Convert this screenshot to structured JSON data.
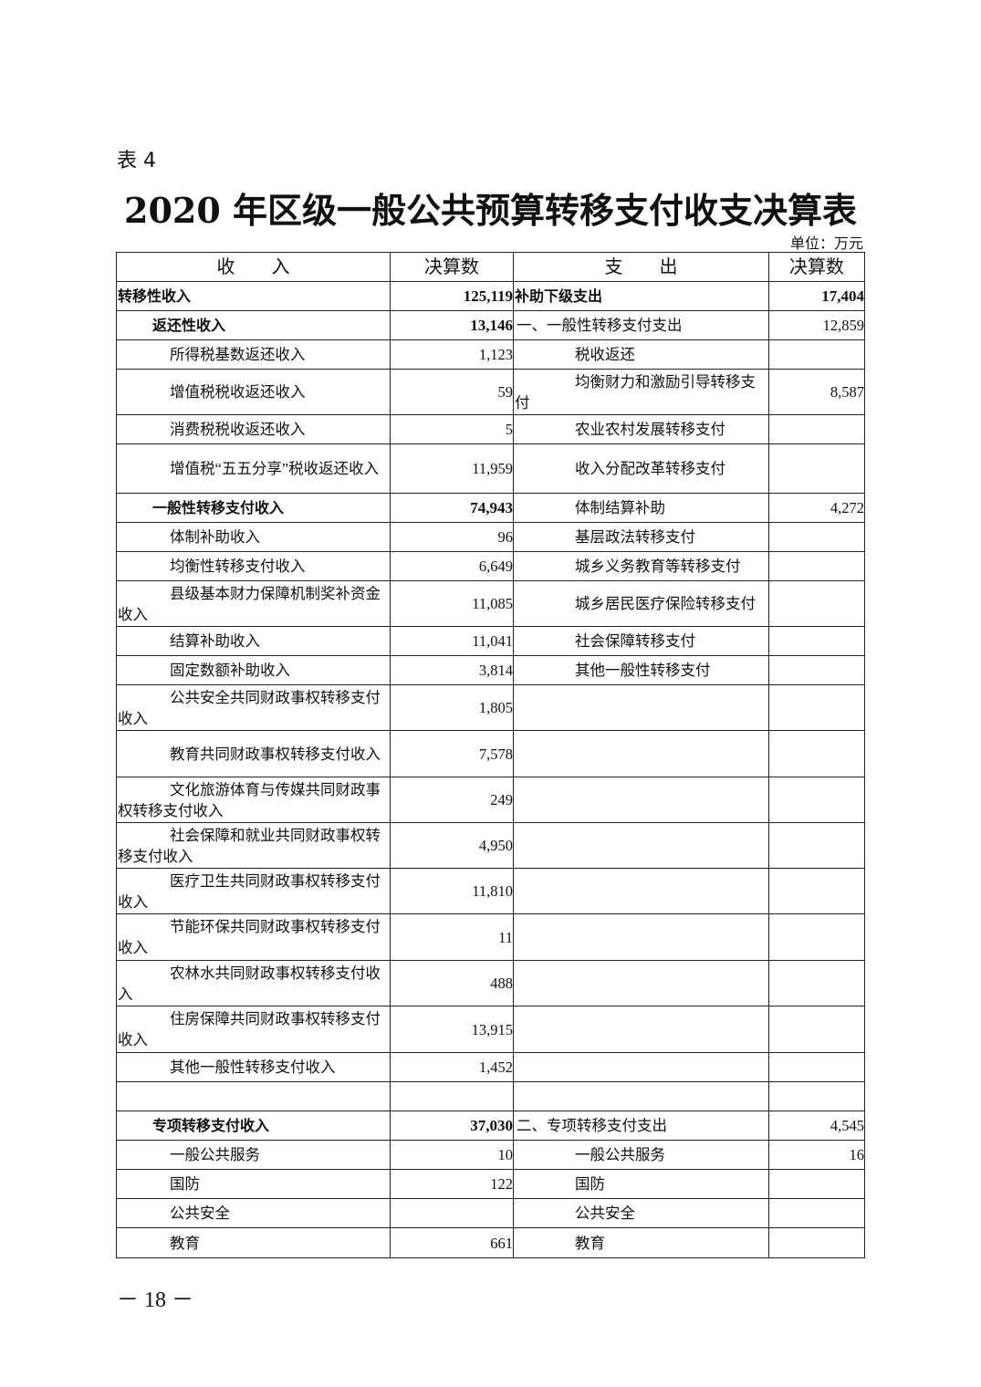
{
  "doc": {
    "label": "表 4",
    "title": "2020 年区级一般公共预算转移支付收支决算表",
    "unit": "单位：万元",
    "page_number": "－ 18 －"
  },
  "table": {
    "headers": [
      "收　　入",
      "决算数",
      "支　　出",
      "决算数"
    ],
    "rows": [
      {
        "in_label": "转移性收入",
        "in_level": 0,
        "in_value": "125,119",
        "out_label": "补助下级支出",
        "out_level": 0,
        "out_value": "17,404",
        "bold": true
      },
      {
        "in_label": "返还性收入",
        "in_level": 1,
        "in_value": "13,146",
        "out_label": "一、一般性转移支付支出",
        "out_level": 1,
        "out_value": "12,859",
        "bold_in": true
      },
      {
        "in_label": "所得税基数返还收入",
        "in_level": 2,
        "in_value": "1,123",
        "out_label": "税收返还",
        "out_level": 2,
        "out_value": ""
      },
      {
        "in_label": "增值税税收返还收入",
        "in_level": 2,
        "in_value": "59",
        "out_label": "均衡财力和激励引导转移支付",
        "out_level": 2,
        "out_value": "8,587"
      },
      {
        "in_label": "消费税税收返还收入",
        "in_level": 2,
        "in_value": "5",
        "out_label": "农业农村发展转移支付",
        "out_level": 2,
        "out_value": ""
      },
      {
        "in_label": "增值税“五五分享”税收返还收入",
        "in_level": 2,
        "in_value": "11,959",
        "out_label": "收入分配改革转移支付",
        "out_level": 2,
        "out_value": ""
      },
      {
        "in_label": "一般性转移支付收入",
        "in_level": 1,
        "in_value": "74,943",
        "out_label": "体制结算补助",
        "out_level": 2,
        "out_value": "4,272",
        "bold_in": true
      },
      {
        "in_label": "体制补助收入",
        "in_level": 2,
        "in_value": "96",
        "out_label": "基层政法转移支付",
        "out_level": 2,
        "out_value": ""
      },
      {
        "in_label": "均衡性转移支付收入",
        "in_level": 2,
        "in_value": "6,649",
        "out_label": "城乡义务教育等转移支付",
        "out_level": 2,
        "out_value": ""
      },
      {
        "in_label": "县级基本财力保障机制奖补资金收入",
        "in_level": 2,
        "in_value": "11,085",
        "out_label": "城乡居民医疗保险转移支付",
        "out_level": 2,
        "out_value": ""
      },
      {
        "in_label": "结算补助收入",
        "in_level": 2,
        "in_value": "11,041",
        "out_label": "社会保障转移支付",
        "out_level": 2,
        "out_value": ""
      },
      {
        "in_label": "固定数额补助收入",
        "in_level": 2,
        "in_value": "3,814",
        "out_label": "其他一般性转移支付",
        "out_level": 2,
        "out_value": ""
      },
      {
        "in_label": "公共安全共同财政事权转移支付收入",
        "in_level": 2,
        "in_value": "1,805",
        "out_label": "",
        "out_level": 2,
        "out_value": ""
      },
      {
        "in_label": "教育共同财政事权转移支付收入",
        "in_level": 2,
        "in_value": "7,578",
        "out_label": "",
        "out_level": 2,
        "out_value": ""
      },
      {
        "in_label": "文化旅游体育与传媒共同财政事权转移支付收入",
        "in_level": 2,
        "in_value": "249",
        "out_label": "",
        "out_level": 2,
        "out_value": ""
      },
      {
        "in_label": "社会保障和就业共同财政事权转移支付收入",
        "in_level": 2,
        "in_value": "4,950",
        "out_label": "",
        "out_level": 2,
        "out_value": ""
      },
      {
        "in_label": "医疗卫生共同财政事权转移支付收入",
        "in_level": 2,
        "in_value": "11,810",
        "out_label": "",
        "out_level": 2,
        "out_value": ""
      },
      {
        "in_label": "节能环保共同财政事权转移支付收入",
        "in_level": 2,
        "in_value": "11",
        "out_label": "",
        "out_level": 2,
        "out_value": ""
      },
      {
        "in_label": "农林水共同财政事权转移支付收入",
        "in_level": 2,
        "in_value": "488",
        "out_label": "",
        "out_level": 2,
        "out_value": ""
      },
      {
        "in_label": "住房保障共同财政事权转移支付收入",
        "in_level": 2,
        "in_value": "13,915",
        "out_label": "",
        "out_level": 2,
        "out_value": ""
      },
      {
        "in_label": "其他一般性转移支付收入",
        "in_level": 2,
        "in_value": "1,452",
        "out_label": "",
        "out_level": 2,
        "out_value": ""
      },
      {
        "in_label": "",
        "in_level": 2,
        "in_value": "",
        "out_label": "",
        "out_level": 2,
        "out_value": ""
      },
      {
        "in_label": "专项转移支付收入",
        "in_level": 1,
        "in_value": "37,030",
        "out_label": "二、专项转移支付支出",
        "out_level": 1,
        "out_value": "4,545",
        "bold_in": true
      },
      {
        "in_label": "一般公共服务",
        "in_level": 2,
        "in_value": "10",
        "out_label": "一般公共服务",
        "out_level": 2,
        "out_value": "16"
      },
      {
        "in_label": "国防",
        "in_level": 2,
        "in_value": "122",
        "out_label": "国防",
        "out_level": 2,
        "out_value": ""
      },
      {
        "in_label": "公共安全",
        "in_level": 2,
        "in_value": "",
        "out_label": "公共安全",
        "out_level": 2,
        "out_value": ""
      },
      {
        "in_label": "教育",
        "in_level": 2,
        "in_value": "661",
        "out_label": "教育",
        "out_level": 2,
        "out_value": ""
      }
    ]
  }
}
